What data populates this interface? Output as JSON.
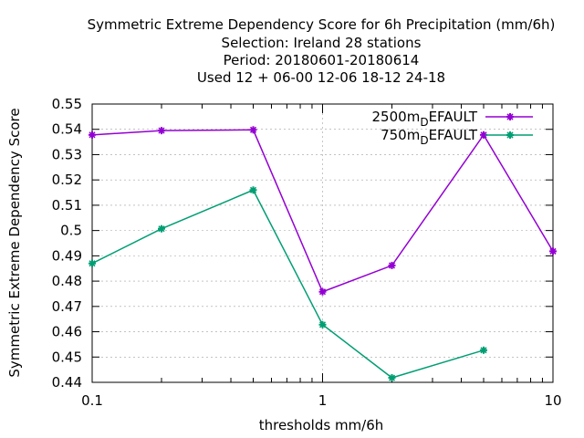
{
  "chart_data": {
    "type": "line",
    "title_lines": [
      "Symmetric Extreme Dependency Score  for 6h Precipitation (mm/6h)",
      "Selection: Ireland     28 stations",
      "Period: 20180601-20180614",
      "Used  12 + 06-00 12-06 18-12 24-18"
    ],
    "xlabel": "thresholds mm/6h",
    "ylabel": "Symmetric Extreme Dependency Score",
    "x_scale": "log",
    "xlim": [
      0.1,
      10
    ],
    "ylim": [
      0.44,
      0.55
    ],
    "x_tick_labels": [
      "0.1",
      "1",
      "10"
    ],
    "y_tick_labels": [
      "0.44",
      "0.45",
      "0.46",
      "0.47",
      "0.48",
      "0.49",
      "0.5",
      "0.51",
      "0.52",
      "0.53",
      "0.54",
      "0.55"
    ],
    "grid": true,
    "legend_position": "top-right",
    "series": [
      {
        "name": "2500m_DEFAULT",
        "legend_main": "2500m",
        "legend_sub": "D",
        "legend_rest": "EFAULT",
        "color": "#9400d3",
        "x": [
          0.1,
          0.2,
          0.5,
          1,
          2,
          5,
          10
        ],
        "y": [
          0.5378,
          0.5395,
          0.5398,
          0.4758,
          0.4862,
          0.5378,
          0.4918
        ]
      },
      {
        "name": "750m_DEFAULT",
        "legend_main": "750m",
        "legend_sub": "D",
        "legend_rest": "EFAULT",
        "color": "#009e73",
        "x": [
          0.1,
          0.2,
          0.5,
          1,
          2,
          5
        ],
        "y": [
          0.487,
          0.5007,
          0.516,
          0.4628,
          0.4418,
          0.4527
        ]
      }
    ]
  }
}
